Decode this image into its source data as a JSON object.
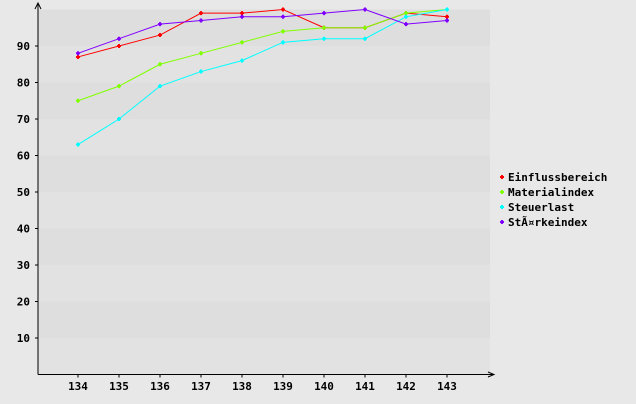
{
  "chart_data": {
    "type": "line",
    "categories": [
      "134",
      "135",
      "136",
      "137",
      "138",
      "139",
      "140",
      "141",
      "142",
      "143"
    ],
    "y_ticks": [
      "10",
      "20",
      "30",
      "40",
      "50",
      "60",
      "70",
      "80",
      "90"
    ],
    "ylim": [
      0,
      100
    ],
    "grid": "alternating horizontal bands",
    "legend_placement": "right",
    "series": [
      {
        "name": "Einflussbereich",
        "color": "#ff0000",
        "values": [
          87,
          90,
          93,
          99,
          99,
          100,
          95,
          95,
          99,
          98
        ]
      },
      {
        "name": "Materialindex",
        "color": "#80ff00",
        "values": [
          75,
          79,
          85,
          88,
          91,
          94,
          95,
          95,
          99,
          100
        ]
      },
      {
        "name": "Steuerlast",
        "color": "#00ffff",
        "values": [
          63,
          70,
          79,
          83,
          86,
          91,
          92,
          92,
          98,
          100
        ]
      },
      {
        "name": "StÃ¤rkeindex",
        "color": "#8000ff",
        "values": [
          88,
          92,
          96,
          97,
          98,
          98,
          99,
          100,
          96,
          97
        ]
      }
    ]
  }
}
